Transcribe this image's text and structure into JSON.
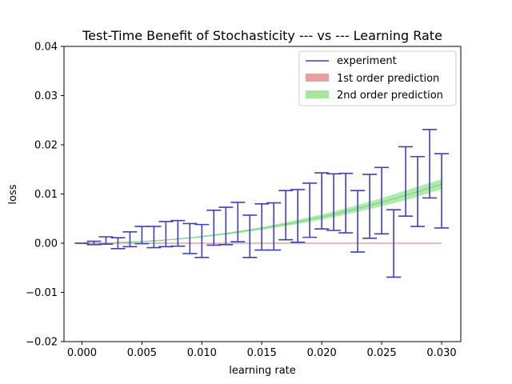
{
  "chart_data": {
    "type": "line",
    "title": "Test-Time Benefit of Stochasticity --- vs --- Learning Rate",
    "xlabel": "learning rate",
    "ylabel": "loss",
    "xlim": [
      -0.0015,
      0.0316
    ],
    "ylim": [
      -0.02,
      0.04
    ],
    "xticks": [
      0.0,
      0.005,
      0.01,
      0.015,
      0.02,
      0.025,
      0.03
    ],
    "xtick_labels": [
      "0.000",
      "0.005",
      "0.010",
      "0.015",
      "0.020",
      "0.025",
      "0.030"
    ],
    "yticks": [
      -0.02,
      -0.01,
      0.0,
      0.01,
      0.02,
      0.03,
      0.04
    ],
    "ytick_labels": [
      "−0.02",
      "−0.01",
      "0.00",
      "0.01",
      "0.02",
      "0.03",
      "0.04"
    ],
    "legend_position": "top-right",
    "legend": [
      {
        "label": "experiment",
        "color": "#3f3fbf",
        "style": "line"
      },
      {
        "label": "1st order prediction",
        "color": "#e6a0a0",
        "style": "patch"
      },
      {
        "label": "2nd order prediction",
        "color": "#a3e89b",
        "style": "patch"
      }
    ],
    "colors": {
      "experiment": "#3f3fbf",
      "first_order": "#e6a0a0",
      "second_order": "#7fd47f",
      "second_order_band": "#a3e89b"
    },
    "experiment_errorbars": [
      {
        "x": 0.0,
        "low": 0.0,
        "high": 0.0
      },
      {
        "x": 0.001,
        "low": -0.0003,
        "high": 0.0004
      },
      {
        "x": 0.002,
        "low": -0.0002,
        "high": 0.0013
      },
      {
        "x": 0.003,
        "low": -0.0011,
        "high": 0.0011
      },
      {
        "x": 0.004,
        "low": -0.0007,
        "high": 0.0023
      },
      {
        "x": 0.005,
        "low": -0.0001,
        "high": 0.0034
      },
      {
        "x": 0.006,
        "low": -0.0009,
        "high": 0.0034
      },
      {
        "x": 0.007,
        "low": -0.0007,
        "high": 0.0044
      },
      {
        "x": 0.008,
        "low": -0.0006,
        "high": 0.0046
      },
      {
        "x": 0.009,
        "low": -0.0021,
        "high": 0.004
      },
      {
        "x": 0.01,
        "low": -0.0029,
        "high": 0.0038
      },
      {
        "x": 0.011,
        "low": -0.0004,
        "high": 0.0067
      },
      {
        "x": 0.012,
        "low": -0.0003,
        "high": 0.0073
      },
      {
        "x": 0.013,
        "low": 0.0003,
        "high": 0.0083
      },
      {
        "x": 0.014,
        "low": -0.0029,
        "high": 0.0057
      },
      {
        "x": 0.015,
        "low": -0.0014,
        "high": 0.008
      },
      {
        "x": 0.016,
        "low": -0.0014,
        "high": 0.0082
      },
      {
        "x": 0.017,
        "low": 0.0007,
        "high": 0.0107
      },
      {
        "x": 0.018,
        "low": 0.0002,
        "high": 0.0109
      },
      {
        "x": 0.019,
        "low": 0.0012,
        "high": 0.0122
      },
      {
        "x": 0.02,
        "low": 0.0029,
        "high": 0.0143
      },
      {
        "x": 0.021,
        "low": 0.0026,
        "high": 0.0141
      },
      {
        "x": 0.022,
        "low": 0.0021,
        "high": 0.0142
      },
      {
        "x": 0.023,
        "low": -0.0018,
        "high": 0.0107
      },
      {
        "x": 0.024,
        "low": 0.001,
        "high": 0.014
      },
      {
        "x": 0.025,
        "low": 0.0019,
        "high": 0.0154
      },
      {
        "x": 0.026,
        "low": -0.0069,
        "high": 0.0068
      },
      {
        "x": 0.027,
        "low": 0.0055,
        "high": 0.0196
      },
      {
        "x": 0.028,
        "low": 0.0034,
        "high": 0.0176
      },
      {
        "x": 0.029,
        "low": 0.0092,
        "high": 0.0231
      },
      {
        "x": 0.03,
        "low": 0.0031,
        "high": 0.0182
      }
    ],
    "first_order_prediction": {
      "x": [
        0.0,
        0.03
      ],
      "y": [
        0.0,
        0.0
      ]
    },
    "second_order_prediction": {
      "x": [
        0.0,
        0.0025,
        0.005,
        0.0075,
        0.01,
        0.0125,
        0.015,
        0.0175,
        0.02,
        0.0225,
        0.025,
        0.0275,
        0.03
      ],
      "y": [
        0.0,
        8e-05,
        0.00033,
        0.00075,
        0.00133,
        0.00208,
        0.003,
        0.00408,
        0.00533,
        0.00675,
        0.00833,
        0.01008,
        0.012
      ],
      "band_low": [
        0.0,
        7e-05,
        0.0003,
        0.00068,
        0.0012,
        0.00188,
        0.0027,
        0.00368,
        0.0048,
        0.00608,
        0.0075,
        0.00907,
        0.011
      ],
      "band_high": [
        0.0,
        9e-05,
        0.00036,
        0.00082,
        0.00146,
        0.00229,
        0.0033,
        0.00449,
        0.00586,
        0.00742,
        0.00916,
        0.01109,
        0.013
      ]
    }
  }
}
